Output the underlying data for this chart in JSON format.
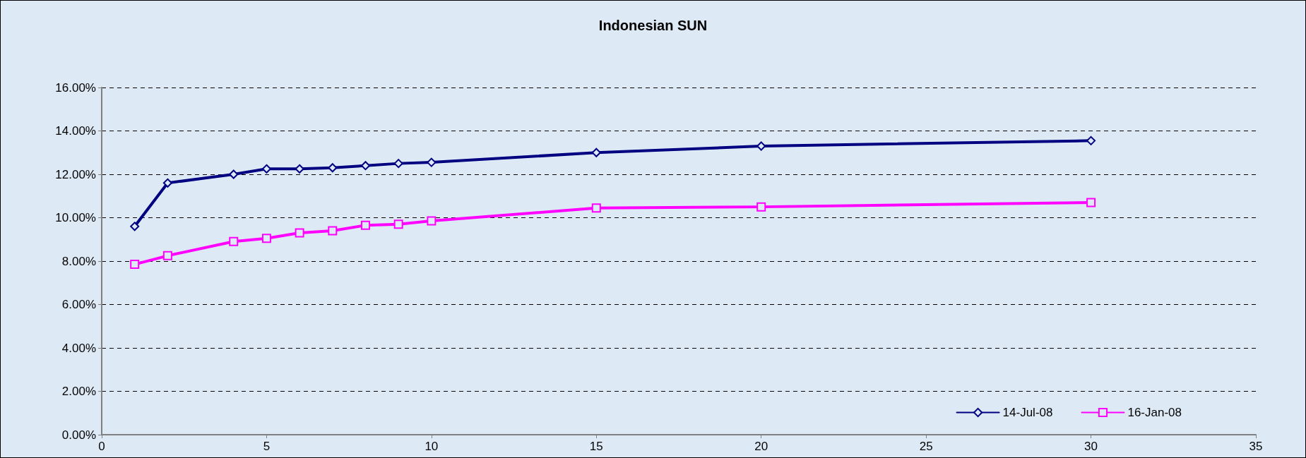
{
  "chart_data": {
    "type": "line",
    "title": "Indonesian SUN",
    "series": [
      {
        "name": "14-Jul-08",
        "color": "#000080",
        "marker": "diamond",
        "x": [
          1,
          2,
          4,
          5,
          6,
          7,
          8,
          9,
          10,
          15,
          20,
          30
        ],
        "values": [
          9.6,
          11.6,
          12.0,
          12.25,
          12.25,
          12.3,
          12.4,
          12.5,
          12.55,
          13.0,
          13.3,
          13.55
        ]
      },
      {
        "name": "16-Jan-08",
        "color": "#ff00ff",
        "marker": "square",
        "x": [
          1,
          2,
          4,
          5,
          6,
          7,
          8,
          9,
          10,
          15,
          20,
          30
        ],
        "values": [
          7.85,
          8.25,
          8.9,
          9.05,
          9.3,
          9.4,
          9.65,
          9.7,
          9.85,
          10.45,
          10.5,
          10.7
        ]
      }
    ],
    "xlim": [
      0,
      35
    ],
    "xticks": [
      0,
      5,
      10,
      15,
      20,
      25,
      30,
      35
    ],
    "ylim": [
      0,
      16
    ],
    "yticks": [
      {
        "value": 0,
        "label": "0.00%"
      },
      {
        "value": 2,
        "label": "2.00%"
      },
      {
        "value": 4,
        "label": "4.00%"
      },
      {
        "value": 6,
        "label": "6.00%"
      },
      {
        "value": 8,
        "label": "8.00%"
      },
      {
        "value": 10,
        "label": "10.00%"
      },
      {
        "value": 12,
        "label": "12.00%"
      },
      {
        "value": 14,
        "label": "14.00%"
      },
      {
        "value": 16,
        "label": "16.00%"
      }
    ],
    "grid": "y",
    "legend": "bottom right",
    "line_style": "solid"
  }
}
